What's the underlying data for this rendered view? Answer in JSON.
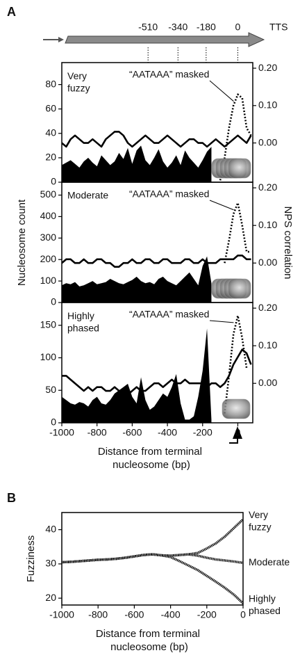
{
  "chart_data": [
    {
      "type": "line",
      "panel": "A",
      "label": "Very fuzzy",
      "annotation": "“AATAAA” masked",
      "ylabel": "Nucleosome count",
      "y2label": "NPS correlation",
      "top_ticks": [
        -510,
        -340,
        -180,
        0
      ],
      "top_label": "TTS",
      "xlim": [
        -1000,
        85
      ],
      "ylim": [
        0,
        98
      ],
      "yticks": [
        0,
        20,
        40,
        60,
        80
      ],
      "y2lim": [
        -0.105,
        0.215
      ],
      "y2ticks": [
        {
          "value": 0,
          "label": "0.00"
        },
        {
          "value": 0.1,
          "label": "0.10"
        },
        {
          "value": 0.2,
          "label": "0.20"
        }
      ],
      "x": [
        -1000,
        -975,
        -950,
        -925,
        -900,
        -875,
        -850,
        -825,
        -800,
        -775,
        -750,
        -725,
        -700,
        -675,
        -650,
        -625,
        -600,
        -575,
        -550,
        -525,
        -500,
        -475,
        -450,
        -425,
        -400,
        -375,
        -350,
        -325,
        -300,
        -275,
        -250,
        -225,
        -200,
        -175,
        -150,
        -125,
        -100,
        -75,
        -50,
        -25,
        0,
        25,
        50,
        75
      ],
      "series": [
        {
          "type": "area",
          "color": "#000000",
          "values": [
            14,
            16,
            18,
            15,
            12,
            17,
            20,
            16,
            13,
            22,
            18,
            14,
            17,
            24,
            19,
            28,
            15,
            26,
            30,
            18,
            14,
            20,
            27,
            17,
            12,
            16,
            22,
            14,
            26,
            20,
            16,
            12,
            18,
            25,
            29,
            null,
            null,
            null,
            null,
            null,
            null,
            null,
            null,
            null
          ]
        },
        {
          "type": "line",
          "axis": "y2",
          "style": "solid",
          "color": "#000000",
          "values": [
            0.0,
            -0.01,
            0.01,
            0.02,
            0.01,
            0.0,
            0.0,
            0.01,
            0.0,
            -0.01,
            0.01,
            0.02,
            0.03,
            0.03,
            0.02,
            0.0,
            -0.01,
            0.0,
            0.01,
            0.02,
            0.01,
            0.0,
            0.0,
            0.01,
            0.02,
            0.01,
            0.0,
            -0.01,
            0.0,
            0.01,
            0.01,
            0.0,
            0.0,
            -0.01,
            0.0,
            0.01,
            0.0,
            -0.01,
            0.0,
            0.01,
            0.02,
            0.01,
            0.0,
            0.02
          ]
        },
        {
          "type": "line",
          "axis": "y2",
          "style": "dotted",
          "color": "#000000",
          "values": [
            null,
            null,
            null,
            null,
            null,
            null,
            null,
            null,
            null,
            null,
            null,
            null,
            null,
            null,
            null,
            null,
            null,
            null,
            null,
            null,
            null,
            null,
            null,
            null,
            null,
            null,
            null,
            null,
            null,
            null,
            null,
            null,
            null,
            null,
            null,
            null,
            -0.1,
            -0.04,
            0.04,
            0.1,
            0.13,
            0.12,
            0.04,
            0.02
          ]
        }
      ]
    },
    {
      "type": "line",
      "label": "Moderate",
      "annotation": "“AATAAA” masked",
      "xlim": [
        -1000,
        85
      ],
      "ylim": [
        0,
        560
      ],
      "yticks": [
        0,
        100,
        200,
        300,
        400,
        500
      ],
      "y2lim": [
        -0.105,
        0.215
      ],
      "y2ticks": [
        {
          "value": 0,
          "label": "0.00"
        },
        {
          "value": 0.1,
          "label": "0.10"
        },
        {
          "value": 0.2,
          "label": "0.20"
        }
      ],
      "x": [
        -1000,
        -975,
        -950,
        -925,
        -900,
        -875,
        -850,
        -825,
        -800,
        -775,
        -750,
        -725,
        -700,
        -675,
        -650,
        -625,
        -600,
        -575,
        -550,
        -525,
        -500,
        -475,
        -450,
        -425,
        -400,
        -375,
        -350,
        -325,
        -300,
        -275,
        -250,
        -225,
        -200,
        -175,
        -150,
        -125,
        -100,
        -75,
        -50,
        -25,
        0,
        25,
        50,
        75
      ],
      "series": [
        {
          "type": "area",
          "color": "#000000",
          "values": [
            80,
            90,
            85,
            95,
            75,
            80,
            90,
            100,
            85,
            90,
            95,
            110,
            100,
            90,
            85,
            95,
            105,
            120,
            100,
            90,
            95,
            85,
            110,
            120,
            100,
            90,
            80,
            100,
            120,
            140,
            110,
            80,
            170,
            215,
            90,
            null,
            null,
            null,
            null,
            null,
            null,
            null,
            null,
            null
          ]
        },
        {
          "type": "line",
          "axis": "y2",
          "style": "solid",
          "color": "#000000",
          "values": [
            0.0,
            0.01,
            0.01,
            0.0,
            0.0,
            0.01,
            0.0,
            0.0,
            0.01,
            0.01,
            0.0,
            0.0,
            -0.01,
            -0.01,
            0.0,
            0.0,
            0.01,
            0.0,
            0.0,
            0.01,
            0.01,
            0.0,
            0.0,
            0.01,
            0.01,
            0.0,
            0.0,
            0.0,
            0.01,
            0.01,
            0.0,
            0.0,
            0.01,
            0.0,
            0.0,
            0.0,
            0.01,
            0.01,
            0.01,
            0.01,
            0.02,
            0.02,
            0.01,
            0.01
          ]
        },
        {
          "type": "line",
          "axis": "y2",
          "style": "dotted",
          "color": "#000000",
          "values": [
            null,
            null,
            null,
            null,
            null,
            null,
            null,
            null,
            null,
            null,
            null,
            null,
            null,
            null,
            null,
            null,
            null,
            null,
            null,
            null,
            null,
            null,
            null,
            null,
            null,
            null,
            null,
            null,
            null,
            null,
            null,
            null,
            null,
            null,
            null,
            null,
            null,
            0.0,
            0.06,
            0.13,
            0.16,
            0.1,
            0.03,
            0.03
          ]
        }
      ]
    },
    {
      "type": "line",
      "label": "Highly phased",
      "annotation": "“AATAAA” masked",
      "xlabel": "Distance from terminal nucleosome (bp)",
      "xlim": [
        -1000,
        85
      ],
      "xticks": [
        -1000,
        -800,
        -600,
        -400,
        -200,
        0
      ],
      "ylim": [
        0,
        185
      ],
      "yticks": [
        0,
        50,
        100,
        150
      ],
      "y2lim": [
        -0.105,
        0.215
      ],
      "y2ticks": [
        {
          "value": 0,
          "label": "0.00"
        },
        {
          "value": 0.1,
          "label": "0.10"
        },
        {
          "value": 0.2,
          "label": "0.20"
        }
      ],
      "x": [
        -1000,
        -975,
        -950,
        -925,
        -900,
        -875,
        -850,
        -825,
        -800,
        -775,
        -750,
        -725,
        -700,
        -675,
        -650,
        -625,
        -600,
        -575,
        -550,
        -525,
        -500,
        -475,
        -450,
        -425,
        -400,
        -375,
        -350,
        -325,
        -300,
        -275,
        -250,
        -225,
        -200,
        -175,
        -150,
        -125,
        -100,
        -75,
        -50,
        -25,
        0,
        25,
        50,
        75
      ],
      "series": [
        {
          "type": "area",
          "color": "#000000",
          "values": [
            40,
            35,
            30,
            28,
            32,
            30,
            25,
            35,
            40,
            30,
            28,
            35,
            45,
            50,
            55,
            60,
            40,
            30,
            70,
            35,
            20,
            25,
            35,
            45,
            40,
            55,
            75,
            30,
            5,
            5,
            10,
            40,
            80,
            145,
            5,
            null,
            null,
            null,
            null,
            null,
            null,
            null,
            null,
            null
          ]
        },
        {
          "type": "line",
          "axis": "y2",
          "style": "solid",
          "color": "#000000",
          "values": [
            0.02,
            0.02,
            0.01,
            0.0,
            -0.01,
            -0.02,
            -0.01,
            -0.02,
            -0.01,
            -0.01,
            -0.02,
            -0.02,
            -0.01,
            -0.02,
            -0.02,
            -0.03,
            -0.02,
            -0.01,
            -0.02,
            -0.02,
            -0.01,
            0.0,
            0.0,
            -0.01,
            0.0,
            0.01,
            0.0,
            0.0,
            0.01,
            0.0,
            0.0,
            0.0,
            0.0,
            -0.01,
            0.0,
            0.0,
            -0.01,
            0.0,
            0.02,
            0.05,
            0.07,
            0.09,
            0.08,
            0.05
          ]
        },
        {
          "type": "line",
          "axis": "y2",
          "style": "dotted",
          "color": "#000000",
          "values": [
            null,
            null,
            null,
            null,
            null,
            null,
            null,
            null,
            null,
            null,
            null,
            null,
            null,
            null,
            null,
            null,
            null,
            null,
            null,
            null,
            null,
            null,
            null,
            null,
            null,
            null,
            null,
            null,
            null,
            null,
            null,
            null,
            null,
            null,
            null,
            null,
            null,
            -0.08,
            0.02,
            0.13,
            0.18,
            0.12,
            0.04,
            null
          ]
        }
      ]
    },
    {
      "type": "line",
      "panel": "B",
      "ylabel": "Fuzziness",
      "xlabel": "Distance from terminal nucleosome (bp)",
      "xlim": [
        -1000,
        0
      ],
      "xticks": [
        -1000,
        -800,
        -600,
        -400,
        -200,
        0
      ],
      "ylim": [
        18,
        45
      ],
      "yticks": [
        20,
        30,
        40
      ],
      "x": [
        -1000,
        -950,
        -900,
        -850,
        -800,
        -750,
        -700,
        -650,
        -600,
        -550,
        -500,
        -450,
        -400,
        -350,
        -300,
        -250,
        -200,
        -150,
        -100,
        -50,
        0
      ],
      "series": [
        {
          "name": "Very fuzzy",
          "color": "#111111",
          "values": [
            30.5,
            30.6,
            30.8,
            31,
            31.2,
            31.3,
            31.5,
            31.8,
            32.2,
            32.6,
            32.8,
            32.5,
            32.4,
            32.6,
            32.8,
            33.2,
            34.5,
            36,
            38,
            40.5,
            43
          ]
        },
        {
          "name": "Moderate",
          "color": "#111111",
          "values": [
            30.5,
            30.6,
            30.8,
            31,
            31.2,
            31.3,
            31.5,
            31.8,
            32.2,
            32.6,
            32.8,
            32.5,
            32.4,
            32.6,
            32.8,
            32.4,
            31.8,
            31.3,
            31,
            30.7,
            30.3
          ]
        },
        {
          "name": "Highly phased",
          "color": "#111111",
          "values": [
            30.5,
            30.6,
            30.8,
            31,
            31.2,
            31.3,
            31.5,
            31.8,
            32.2,
            32.6,
            32.8,
            32.5,
            32.0,
            30.8,
            29.5,
            28.2,
            26.5,
            24.8,
            23,
            21,
            18.5
          ]
        }
      ]
    }
  ]
}
